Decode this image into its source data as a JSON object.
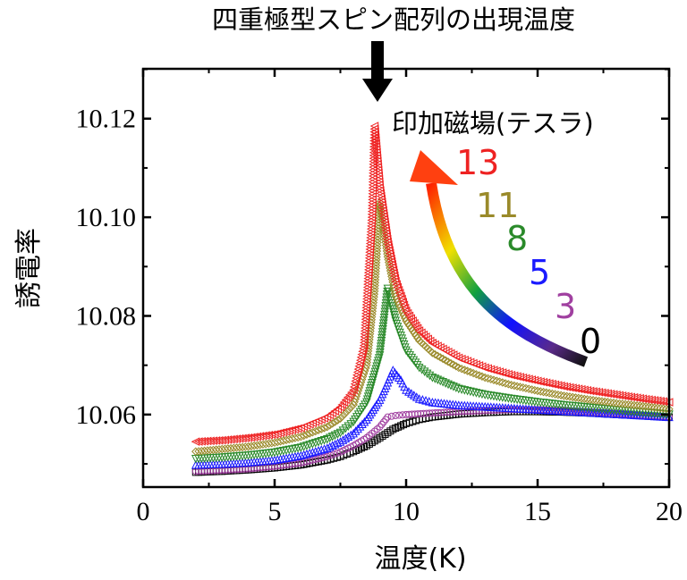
{
  "chart_data": {
    "type": "scatter",
    "title": "",
    "annotation_top": "四重極型スピン配列の出現温度",
    "xlabel": "温度(K)",
    "ylabel": "誘電率",
    "xlim": [
      0,
      20
    ],
    "ylim": [
      10.0453,
      10.1301
    ],
    "x_ticks": [
      "0",
      "5",
      "10",
      "15",
      "20"
    ],
    "y_ticks": [
      "10.06",
      "10.08",
      "10.10",
      "10.12"
    ],
    "y_tick_values": [
      10.06,
      10.08,
      10.1,
      10.12
    ],
    "x_tick_values": [
      0,
      5,
      10,
      15,
      20
    ],
    "grid": false,
    "legend_title": "印加磁場(テスラ)",
    "legend_placement": "top-right",
    "series": [
      {
        "name": "0",
        "color": "#000000",
        "marker": "square",
        "x": [
          2,
          3,
          4,
          5,
          6,
          7,
          7.5,
          8,
          8.5,
          9,
          9.5,
          10,
          10.5,
          11,
          12,
          13,
          14,
          15,
          16,
          17,
          18,
          19,
          20
        ],
        "y": [
          10.0483,
          10.0485,
          10.0488,
          10.0492,
          10.0498,
          10.0508,
          10.0515,
          10.0525,
          10.0537,
          10.0553,
          10.057,
          10.0582,
          10.059,
          10.0595,
          10.0601,
          10.0604,
          10.0606,
          10.0606,
          10.0605,
          10.0603,
          10.06,
          10.0598,
          10.0595
        ]
      },
      {
        "name": "3",
        "color": "#a040a0",
        "marker": "circle",
        "x": [
          2,
          3,
          4,
          5,
          6,
          7,
          7.5,
          8,
          8.5,
          9,
          9.3,
          9.6,
          10,
          11,
          12,
          13,
          14,
          15,
          16,
          17,
          18,
          19,
          20
        ],
        "y": [
          10.0485,
          10.0487,
          10.049,
          10.0495,
          10.0502,
          10.0515,
          10.0524,
          10.0537,
          10.0553,
          10.0575,
          10.0595,
          10.0598,
          10.06,
          10.0603,
          10.0606,
          10.0608,
          10.061,
          10.061,
          10.0608,
          10.0605,
          10.0602,
          10.0598,
          10.0595
        ]
      },
      {
        "name": "5",
        "color": "#1a1aff",
        "marker": "triangle-up",
        "x": [
          2,
          3,
          4,
          5,
          6,
          7,
          7.5,
          8,
          8.5,
          9,
          9.3,
          9.5,
          9.8,
          10,
          10.5,
          11,
          12,
          13,
          14,
          15,
          16,
          17,
          18,
          19,
          20
        ],
        "y": [
          10.0498,
          10.05,
          10.0503,
          10.0508,
          10.0517,
          10.0532,
          10.0545,
          10.0562,
          10.059,
          10.063,
          10.0665,
          10.069,
          10.067,
          10.065,
          10.0632,
          10.0625,
          10.0619,
          10.0616,
          10.0613,
          10.061,
          10.0607,
          10.0604,
          10.0601,
          10.0598,
          10.0595
        ]
      },
      {
        "name": "8",
        "color": "#2a8a2a",
        "marker": "triangle-down",
        "x": [
          2,
          3,
          4,
          5,
          6,
          7,
          7.5,
          8,
          8.5,
          9,
          9.3,
          9.6,
          10,
          10.5,
          11,
          12,
          13,
          14,
          15,
          16,
          17,
          18,
          19,
          20
        ],
        "y": [
          10.051,
          10.0513,
          10.0517,
          10.0523,
          10.0533,
          10.055,
          10.0563,
          10.0585,
          10.0625,
          10.072,
          10.0855,
          10.079,
          10.073,
          10.0695,
          10.0675,
          10.0652,
          10.064,
          10.0632,
          10.0625,
          10.0619,
          10.0614,
          10.0609,
          10.0604,
          10.06
        ]
      },
      {
        "name": "11",
        "color": "#9a8a2a",
        "marker": "diamond",
        "x": [
          2,
          3,
          4,
          5,
          6,
          7,
          7.5,
          8,
          8.5,
          8.8,
          9,
          9.3,
          9.6,
          10,
          10.5,
          11,
          12,
          13,
          14,
          15,
          16,
          17,
          18,
          19,
          20
        ],
        "y": [
          10.0525,
          10.053,
          10.0535,
          10.0543,
          10.0555,
          10.0575,
          10.0592,
          10.062,
          10.07,
          10.085,
          10.103,
          10.092,
          10.084,
          10.079,
          10.075,
          10.0725,
          10.0695,
          10.0675,
          10.066,
          10.0648,
          10.0638,
          10.063,
          10.0623,
          10.0617,
          10.0611
        ]
      },
      {
        "name": "13",
        "color": "#ee2222",
        "marker": "triangle-left",
        "x": [
          2,
          3,
          4,
          5,
          6,
          7,
          7.5,
          8,
          8.4,
          8.7,
          8.8,
          9,
          9.3,
          9.6,
          10,
          10.5,
          11,
          12,
          13,
          14,
          15,
          16,
          17,
          18,
          19,
          20
        ],
        "y": [
          10.0545,
          10.0548,
          10.0553,
          10.056,
          10.0573,
          10.0595,
          10.0615,
          10.065,
          10.074,
          10.1,
          10.1185,
          10.106,
          10.095,
          10.087,
          10.081,
          10.077,
          10.0745,
          10.0715,
          10.0695,
          10.068,
          10.0668,
          10.0657,
          10.0648,
          10.064,
          10.0632,
          10.0625
        ]
      }
    ]
  }
}
